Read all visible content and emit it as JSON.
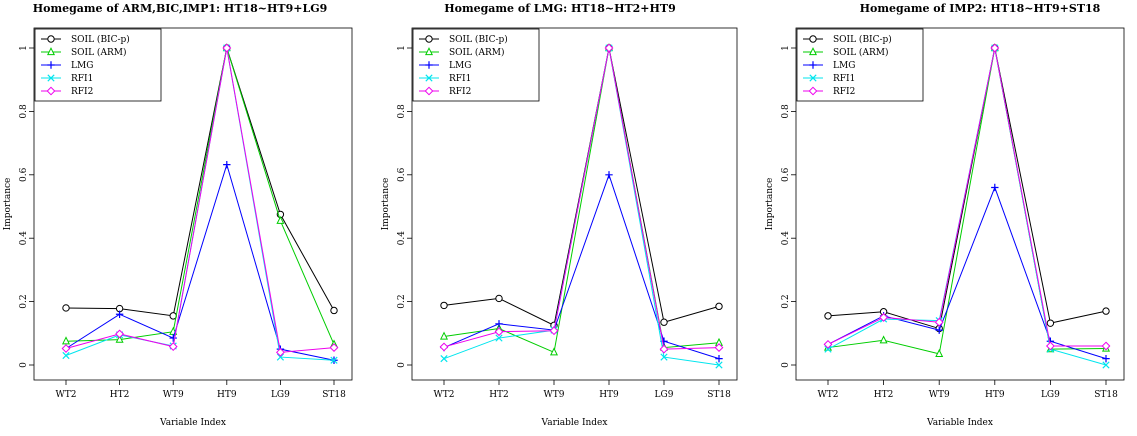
{
  "chart_data": [
    {
      "type": "line",
      "title": "Homegame of ARM,BIC,IMP1:  HT18~HT9+LG9",
      "xlabel": "Variable Index",
      "ylabel": "Importance",
      "categories": [
        "WT2",
        "HT2",
        "WT9",
        "HT9",
        "LG9",
        "ST18"
      ],
      "yticks": [
        "0",
        "0.2",
        "0.4",
        "0.6",
        "0.8",
        "1"
      ],
      "ylim": [
        0,
        1
      ],
      "legend_position": "top-left",
      "series": [
        {
          "name": "SOIL (BIC-p)",
          "color": "#000000",
          "marker": "circle",
          "values": [
            0.18,
            0.178,
            0.155,
            1.0,
            0.475,
            0.172
          ]
        },
        {
          "name": "SOIL (ARM)",
          "color": "#00cd00",
          "marker": "triangle",
          "values": [
            0.075,
            0.08,
            0.105,
            1.0,
            0.455,
            0.065
          ]
        },
        {
          "name": "LMG",
          "color": "#0000ff",
          "marker": "plus",
          "values": [
            0.052,
            0.16,
            0.085,
            0.632,
            0.05,
            0.015
          ]
        },
        {
          "name": "RFI1",
          "color": "#00e5ee",
          "marker": "cross",
          "values": [
            0.03,
            0.095,
            0.06,
            1.0,
            0.025,
            0.015
          ]
        },
        {
          "name": "RFI2",
          "color": "#ee00ee",
          "marker": "diamond",
          "values": [
            0.052,
            0.098,
            0.058,
            1.0,
            0.04,
            0.055
          ]
        }
      ]
    },
    {
      "type": "line",
      "title": "Homegame of LMG:  HT18~HT2+HT9",
      "xlabel": "Variable Index",
      "ylabel": "Importance",
      "categories": [
        "WT2",
        "HT2",
        "WT9",
        "HT9",
        "LG9",
        "ST18"
      ],
      "yticks": [
        "0",
        "0.2",
        "0.4",
        "0.6",
        "0.8",
        "1"
      ],
      "ylim": [
        0,
        1
      ],
      "legend_position": "top-left",
      "series": [
        {
          "name": "SOIL (BIC-p)",
          "color": "#000000",
          "marker": "circle",
          "values": [
            0.188,
            0.21,
            0.125,
            1.0,
            0.135,
            0.185
          ]
        },
        {
          "name": "SOIL (ARM)",
          "color": "#00cd00",
          "marker": "triangle",
          "values": [
            0.09,
            0.115,
            0.04,
            1.0,
            0.055,
            0.07
          ]
        },
        {
          "name": "LMG",
          "color": "#0000ff",
          "marker": "plus",
          "values": [
            0.055,
            0.13,
            0.11,
            0.6,
            0.075,
            0.02
          ]
        },
        {
          "name": "RFI1",
          "color": "#00e5ee",
          "marker": "cross",
          "values": [
            0.02,
            0.085,
            0.11,
            1.0,
            0.025,
            0.0
          ]
        },
        {
          "name": "RFI2",
          "color": "#ee00ee",
          "marker": "diamond",
          "values": [
            0.057,
            0.105,
            0.108,
            1.0,
            0.05,
            0.055
          ]
        }
      ]
    },
    {
      "type": "line",
      "title": "Homegame of IMP2:  HT18~HT9+ST18",
      "xlabel": "Variable Index",
      "ylabel": "Importance",
      "categories": [
        "WT2",
        "HT2",
        "WT9",
        "HT9",
        "LG9",
        "ST18"
      ],
      "yticks": [
        "0",
        "0.2",
        "0.4",
        "0.6",
        "0.8",
        "1"
      ],
      "ylim": [
        0,
        1
      ],
      "legend_position": "top-left",
      "series": [
        {
          "name": "SOIL (BIC-p)",
          "color": "#000000",
          "marker": "circle",
          "values": [
            0.155,
            0.168,
            0.115,
            1.0,
            0.132,
            0.17
          ]
        },
        {
          "name": "SOIL (ARM)",
          "color": "#00cd00",
          "marker": "triangle",
          "values": [
            0.055,
            0.078,
            0.035,
            1.0,
            0.05,
            0.052
          ]
        },
        {
          "name": "LMG",
          "color": "#0000ff",
          "marker": "plus",
          "values": [
            0.065,
            0.155,
            0.11,
            0.56,
            0.075,
            0.02
          ]
        },
        {
          "name": "RFI1",
          "color": "#00e5ee",
          "marker": "cross",
          "values": [
            0.05,
            0.145,
            0.14,
            1.0,
            0.05,
            0.0
          ]
        },
        {
          "name": "RFI2",
          "color": "#ee00ee",
          "marker": "diamond",
          "values": [
            0.065,
            0.15,
            0.135,
            1.0,
            0.06,
            0.06
          ]
        }
      ]
    }
  ]
}
